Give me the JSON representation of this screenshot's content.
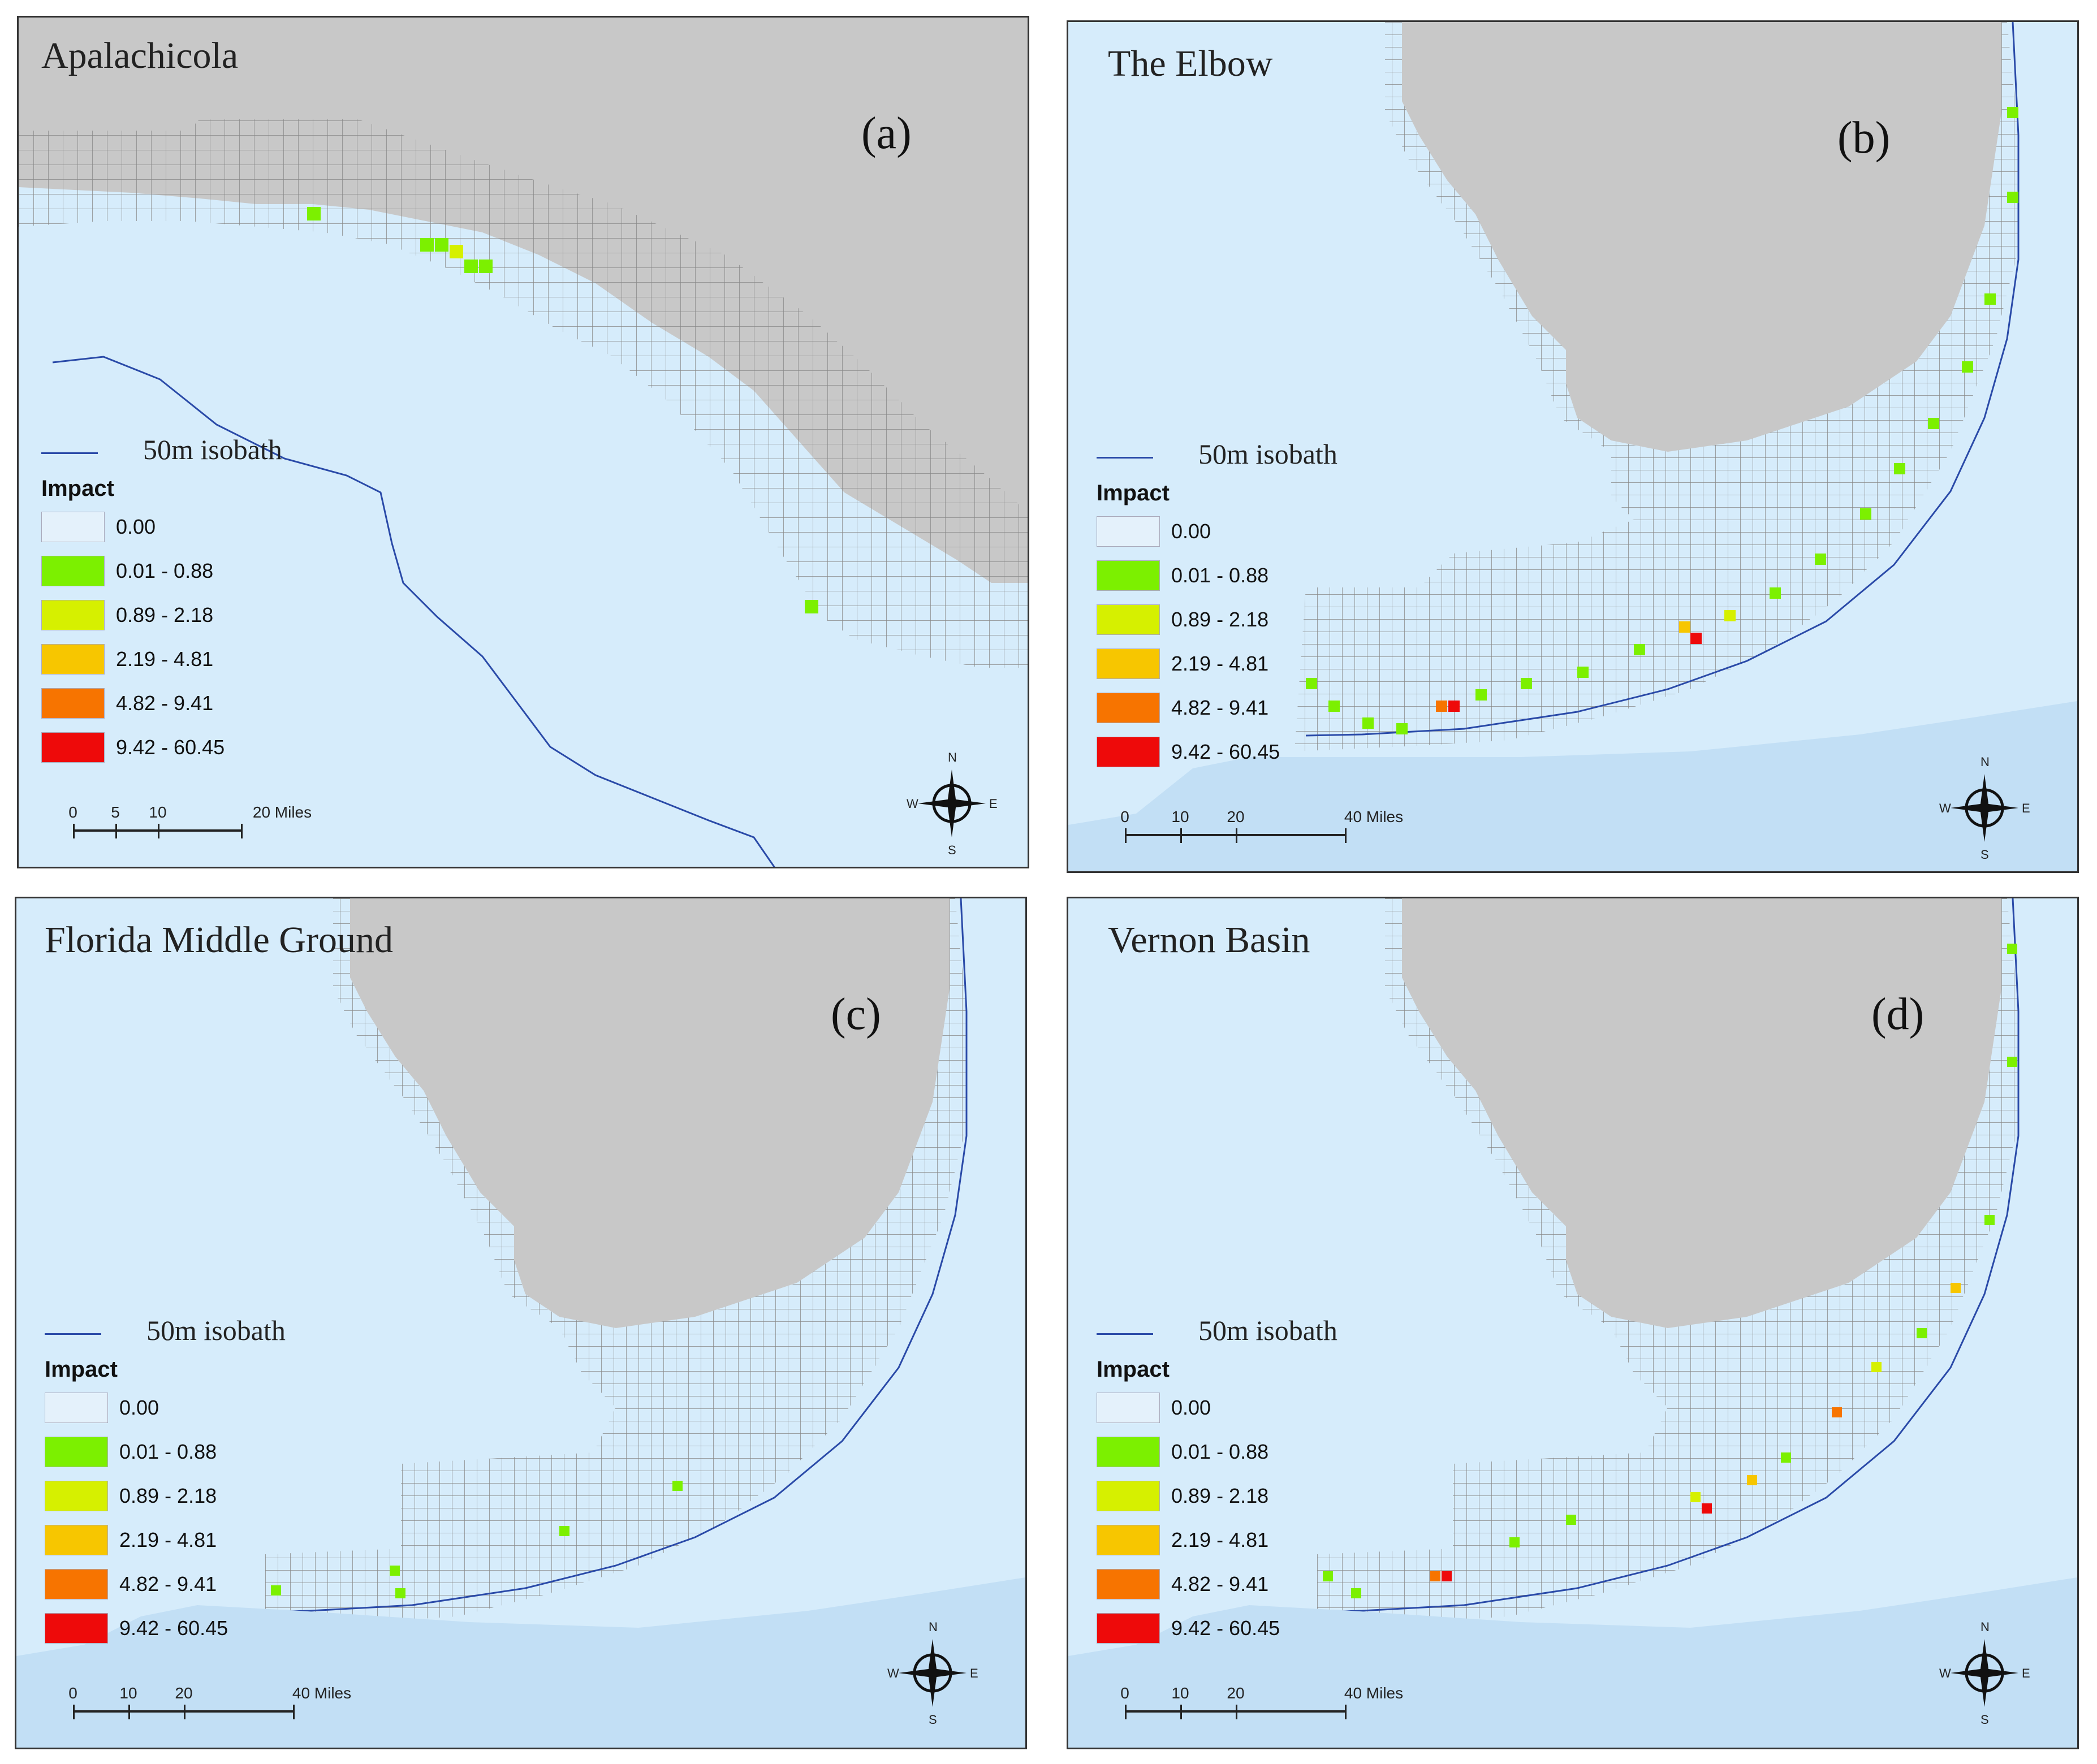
{
  "legend": {
    "isobath_label": "50m isobath",
    "impact_title": "Impact",
    "classes": [
      {
        "label": "0.00",
        "color": "#e4f1fb"
      },
      {
        "label": "0.01 - 0.88",
        "color": "#7cf000"
      },
      {
        "label": "0.89 - 2.18",
        "color": "#d6f000"
      },
      {
        "label": "2.19 - 4.81",
        "color": "#f7c600"
      },
      {
        "label": "4.82 - 9.41",
        "color": "#f77400"
      },
      {
        "label": "9.42 - 60.45",
        "color": "#ee0a0a"
      }
    ]
  },
  "compass": {
    "n": "N",
    "s": "S",
    "e": "E",
    "w": "W"
  },
  "colors": {
    "water": "#d6ecfb",
    "land": "#c8c8c8",
    "grid_line": "#888888",
    "isobath": "#2a4aa8"
  },
  "panels": [
    {
      "title": "Apalachicola",
      "label": "(a)",
      "scale": {
        "ticks": [
          "0",
          "5",
          "10",
          "20 Miles"
        ]
      }
    },
    {
      "title": "The Elbow",
      "label": "(b)",
      "scale": {
        "ticks": [
          "0",
          "10",
          "20",
          "40 Miles"
        ]
      }
    },
    {
      "title": "Florida Middle Ground",
      "label": "(c)",
      "scale": {
        "ticks": [
          "0",
          "10",
          "20",
          "40 Miles"
        ]
      }
    },
    {
      "title": "Vernon Basin",
      "label": "(d)",
      "scale": {
        "ticks": [
          "0",
          "10",
          "20",
          "40 Miles"
        ]
      }
    }
  ]
}
